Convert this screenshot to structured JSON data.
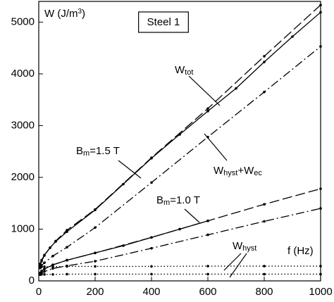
{
  "chart_data": {
    "type": "line",
    "xlim": [
      0,
      1000
    ],
    "xticks": [
      0,
      200,
      400,
      600,
      800,
      1000
    ],
    "ylim": [
      0,
      5400
    ],
    "yticks": [
      0,
      1000,
      2000,
      3000,
      4000,
      5000
    ],
    "series": [
      {
        "color": "#000000",
        "dash": "solid",
        "x": [
          5,
          10,
          20,
          40,
          60,
          100,
          200,
          300,
          400,
          500,
          600,
          700,
          800,
          900,
          1000
        ],
        "values": [
          330,
          400,
          500,
          640,
          760,
          950,
          1370,
          1870,
          2370,
          2830,
          3280,
          3720,
          4230,
          4720,
          5190
        ]
      },
      {
        "color": "#000000",
        "dash": "dashed",
        "x": [
          5,
          10,
          20,
          40,
          60,
          100,
          200,
          400,
          600,
          800,
          1000
        ],
        "values": [
          300,
          380,
          490,
          640,
          770,
          980,
          1380,
          2380,
          3330,
          4340,
          5330
        ]
      },
      {
        "color": "#000000",
        "dash": "dashdot",
        "x": [
          5,
          10,
          20,
          50,
          100,
          200,
          400,
          600,
          800,
          1000
        ],
        "values": [
          250,
          300,
          350,
          480,
          650,
          1030,
          1900,
          2780,
          3650,
          4530
        ]
      },
      {
        "color": "#000000",
        "dash": "solid",
        "x": [
          5,
          10,
          20,
          50,
          100,
          200,
          300,
          400,
          500,
          600
        ],
        "values": [
          150,
          190,
          230,
          310,
          400,
          540,
          680,
          840,
          1000,
          1160
        ]
      },
      {
        "color": "#000000",
        "dash": "dashed",
        "x": [
          5,
          10,
          20,
          50,
          100,
          200,
          400,
          600,
          800,
          1000
        ],
        "values": [
          150,
          190,
          230,
          310,
          400,
          540,
          840,
          1160,
          1480,
          1780
        ]
      },
      {
        "color": "#000000",
        "dash": "dashdot",
        "x": [
          5,
          10,
          20,
          50,
          100,
          200,
          400,
          600,
          800,
          1000
        ],
        "values": [
          120,
          150,
          180,
          240,
          290,
          380,
          630,
          890,
          1150,
          1400
        ]
      },
      {
        "color": "#000000",
        "dash": "dotted",
        "x": [
          5,
          10,
          20,
          50,
          100,
          200,
          400,
          600,
          800,
          1000
        ],
        "values": [
          270,
          270,
          275,
          275,
          280,
          280,
          280,
          285,
          285,
          285
        ]
      },
      {
        "color": "#000000",
        "dash": "dotted",
        "x": [
          5,
          10,
          20,
          50,
          100,
          200,
          400,
          600,
          800,
          1000
        ],
        "values": [
          120,
          125,
          125,
          125,
          130,
          130,
          130,
          130,
          130,
          130
        ]
      }
    ],
    "annotations": [
      {
        "parts": [
          {
            "text": "W (J/m"
          },
          {
            "text": "3",
            "style": "sup"
          },
          {
            "text": ")"
          }
        ]
      },
      {
        "parts": [
          {
            "text": "Steel 1"
          }
        ],
        "boxed": true
      },
      {
        "parts": [
          {
            "text": "W"
          },
          {
            "text": "tot",
            "style": "sub"
          }
        ]
      },
      {
        "parts": [
          {
            "text": "B"
          },
          {
            "text": "m",
            "style": "sub"
          },
          {
            "text": "=1.5 T"
          }
        ]
      },
      {
        "parts": [
          {
            "text": "W"
          },
          {
            "text": "hyst",
            "style": "sub"
          },
          {
            "text": "+W"
          },
          {
            "text": "ec",
            "style": "sub"
          }
        ]
      },
      {
        "parts": [
          {
            "text": "B"
          },
          {
            "text": "m",
            "style": "sub"
          },
          {
            "text": "=1.0 T"
          }
        ]
      },
      {
        "parts": [
          {
            "text": "W"
          },
          {
            "text": "hyst",
            "style": "sub"
          }
        ]
      },
      {
        "parts": [
          {
            "text": "f (Hz)"
          }
        ]
      }
    ]
  }
}
